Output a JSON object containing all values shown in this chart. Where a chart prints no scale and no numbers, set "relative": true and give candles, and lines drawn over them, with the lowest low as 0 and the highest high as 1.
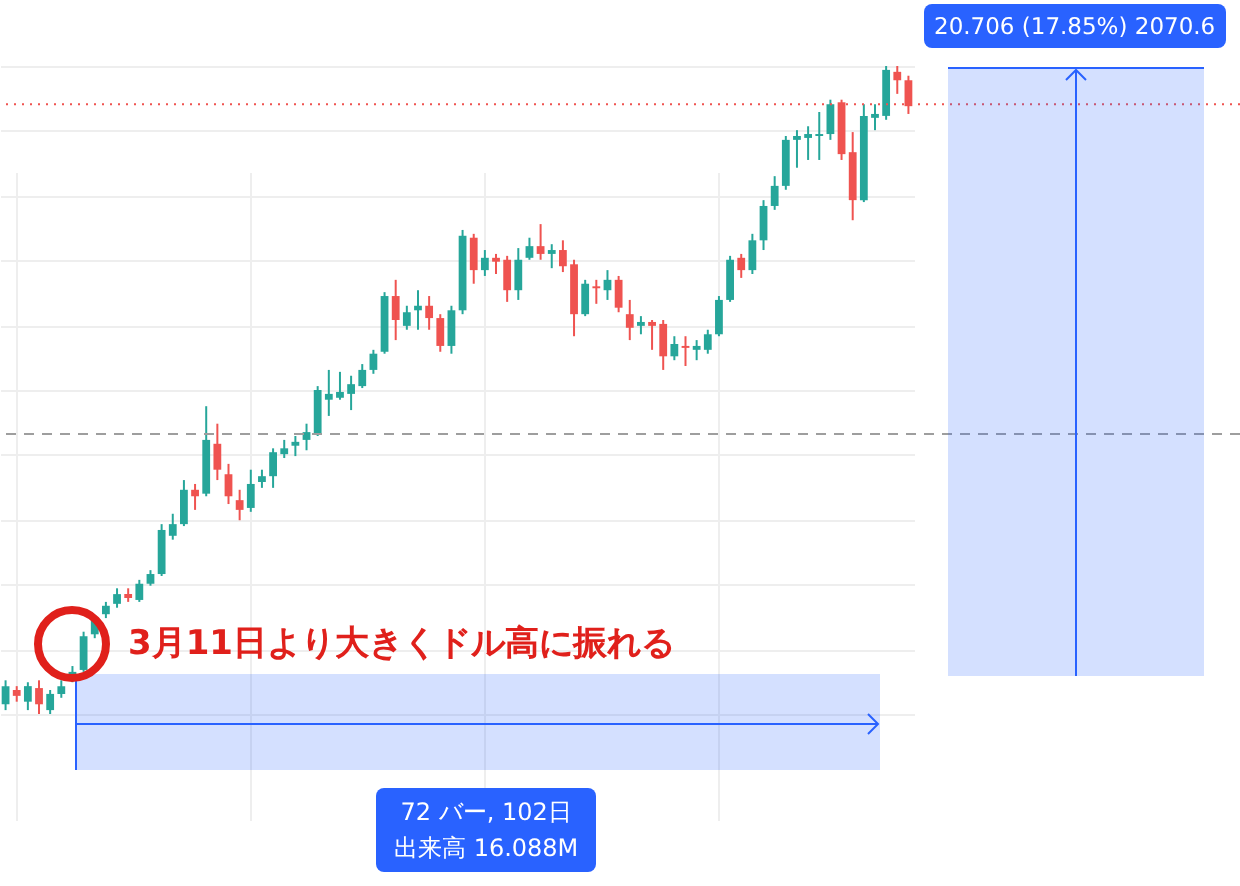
{
  "chart_data": {
    "type": "candlestick",
    "relative": true,
    "grid": true,
    "categories": [
      null,
      null,
      null,
      null,
      null,
      null,
      null,
      null,
      null,
      null,
      null,
      null,
      null,
      null,
      null,
      null,
      null,
      null,
      null,
      null,
      null,
      null,
      null,
      null,
      null,
      null,
      null,
      null,
      null,
      null,
      null,
      null,
      null,
      null,
      null,
      null,
      null,
      null,
      null,
      null,
      null,
      null,
      null,
      null,
      null,
      null,
      null,
      null,
      null,
      null,
      null,
      null,
      null,
      null,
      null,
      null,
      null,
      null,
      null,
      null,
      null,
      null,
      null,
      null,
      null,
      null,
      null,
      null,
      null,
      null,
      null,
      null,
      null,
      null,
      null,
      null,
      null,
      null,
      null,
      null,
      null,
      null
    ],
    "ohlc": [
      [
        0.015,
        0.052,
        0.006,
        0.043
      ],
      [
        0.037,
        0.043,
        0.019,
        0.028
      ],
      [
        0.019,
        0.049,
        0.006,
        0.043
      ],
      [
        0.04,
        0.052,
        0,
        0.015
      ],
      [
        0.006,
        0.037,
        0,
        0.031
      ],
      [
        0.031,
        0.052,
        0.025,
        0.043
      ],
      [
        0.052,
        0.074,
        0.049,
        0.065
      ],
      [
        0.068,
        0.127,
        0.065,
        0.12
      ],
      [
        0.123,
        0.151,
        0.117,
        0.145
      ],
      [
        0.154,
        0.173,
        0.148,
        0.167
      ],
      [
        0.17,
        0.194,
        0.164,
        0.185
      ],
      [
        0.185,
        0.194,
        0.173,
        0.179
      ],
      [
        0.176,
        0.207,
        0.173,
        0.201
      ],
      [
        0.201,
        0.222,
        0.198,
        0.216
      ],
      [
        0.216,
        0.293,
        0.213,
        0.284
      ],
      [
        0.275,
        0.309,
        0.269,
        0.293
      ],
      [
        0.293,
        0.361,
        0.29,
        0.346
      ],
      [
        0.346,
        0.355,
        0.315,
        0.336
      ],
      [
        0.34,
        0.475,
        0.336,
        0.423
      ],
      [
        0.417,
        0.448,
        0.361,
        0.377
      ],
      [
        0.37,
        0.386,
        0.324,
        0.336
      ],
      [
        0.33,
        0.346,
        0.299,
        0.315
      ],
      [
        0.318,
        0.377,
        0.312,
        0.355
      ],
      [
        0.358,
        0.377,
        0.349,
        0.367
      ],
      [
        0.367,
        0.41,
        0.349,
        0.404
      ],
      [
        0.401,
        0.423,
        0.395,
        0.41
      ],
      [
        0.414,
        0.429,
        0.398,
        0.42
      ],
      [
        0.423,
        0.448,
        0.407,
        0.435
      ],
      [
        0.432,
        0.506,
        0.429,
        0.5
      ],
      [
        0.485,
        0.531,
        0.46,
        0.494
      ],
      [
        0.488,
        0.528,
        0.485,
        0.497
      ],
      [
        0.494,
        0.522,
        0.469,
        0.509
      ],
      [
        0.506,
        0.54,
        0.503,
        0.531
      ],
      [
        0.531,
        0.562,
        0.525,
        0.556
      ],
      [
        0.559,
        0.651,
        0.556,
        0.645
      ],
      [
        0.645,
        0.67,
        0.577,
        0.608
      ],
      [
        0.599,
        0.63,
        0.593,
        0.62
      ],
      [
        0.623,
        0.654,
        0.593,
        0.63
      ],
      [
        0.63,
        0.645,
        0.593,
        0.611
      ],
      [
        0.611,
        0.617,
        0.559,
        0.568
      ],
      [
        0.568,
        0.63,
        0.556,
        0.623
      ],
      [
        0.623,
        0.747,
        0.617,
        0.738
      ],
      [
        0.735,
        0.741,
        0.664,
        0.685
      ],
      [
        0.685,
        0.716,
        0.676,
        0.704
      ],
      [
        0.704,
        0.71,
        0.679,
        0.698
      ],
      [
        0.701,
        0.707,
        0.636,
        0.654
      ],
      [
        0.654,
        0.719,
        0.639,
        0.701
      ],
      [
        0.704,
        0.735,
        0.701,
        0.722
      ],
      [
        0.722,
        0.756,
        0.701,
        0.71
      ],
      [
        0.71,
        0.725,
        0.688,
        0.716
      ],
      [
        0.716,
        0.731,
        0.682,
        0.691
      ],
      [
        0.694,
        0.701,
        0.583,
        0.617
      ],
      [
        0.617,
        0.67,
        0.614,
        0.664
      ],
      [
        0.66,
        0.67,
        0.633,
        0.657
      ],
      [
        0.654,
        0.685,
        0.639,
        0.67
      ],
      [
        0.67,
        0.676,
        0.62,
        0.627
      ],
      [
        0.617,
        0.639,
        0.577,
        0.596
      ],
      [
        0.599,
        0.614,
        0.586,
        0.605
      ],
      [
        0.605,
        0.608,
        0.562,
        0.599
      ],
      [
        0.602,
        0.608,
        0.531,
        0.552
      ],
      [
        0.552,
        0.583,
        0.546,
        0.571
      ],
      [
        0.568,
        0.583,
        0.537,
        0.565
      ],
      [
        0.562,
        0.577,
        0.546,
        0.568
      ],
      [
        0.562,
        0.593,
        0.556,
        0.586
      ],
      [
        0.586,
        0.645,
        0.583,
        0.639
      ],
      [
        0.639,
        0.707,
        0.636,
        0.701
      ],
      [
        0.704,
        0.71,
        0.673,
        0.685
      ],
      [
        0.685,
        0.741,
        0.679,
        0.731
      ],
      [
        0.731,
        0.793,
        0.716,
        0.784
      ],
      [
        0.784,
        0.83,
        0.778,
        0.815
      ],
      [
        0.815,
        0.892,
        0.809,
        0.886
      ],
      [
        0.886,
        0.901,
        0.843,
        0.892
      ],
      [
        0.889,
        0.907,
        0.855,
        0.895
      ],
      [
        0.892,
        0.929,
        0.855,
        0.895
      ],
      [
        0.895,
        0.948,
        0.886,
        0.941
      ],
      [
        0.944,
        0.948,
        0.855,
        0.864
      ],
      [
        0.867,
        0.898,
        0.762,
        0.793
      ],
      [
        0.793,
        0.941,
        0.79,
        0.923
      ],
      [
        0.92,
        0.941,
        0.901,
        0.926
      ],
      [
        0.923,
        1,
        0.917,
        0.994
      ],
      [
        0.991,
        1,
        0.957,
        0.978
      ],
      [
        0.978,
        0.985,
        0.926,
        0.938
      ]
    ],
    "colors": [
      "#26a69a",
      "#ef5350",
      "#26a69a",
      "#ef5350",
      "#26a69a",
      "#26a69a",
      "#26a69a",
      "#26a69a",
      "#26a69a",
      "#26a69a",
      "#26a69a",
      "#ef5350",
      "#26a69a",
      "#26a69a",
      "#26a69a",
      "#26a69a",
      "#26a69a",
      "#ef5350",
      "#26a69a",
      "#ef5350",
      "#ef5350",
      "#ef5350",
      "#26a69a",
      "#26a69a",
      "#26a69a",
      "#26a69a",
      "#26a69a",
      "#26a69a",
      "#26a69a",
      "#26a69a",
      "#26a69a",
      "#26a69a",
      "#26a69a",
      "#26a69a",
      "#26a69a",
      "#ef5350",
      "#26a69a",
      "#26a69a",
      "#ef5350",
      "#ef5350",
      "#26a69a",
      "#26a69a",
      "#ef5350",
      "#26a69a",
      "#ef5350",
      "#ef5350",
      "#26a69a",
      "#26a69a",
      "#ef5350",
      "#26a69a",
      "#ef5350",
      "#ef5350",
      "#26a69a",
      "#ef5350",
      "#26a69a",
      "#ef5350",
      "#ef5350",
      "#26a69a",
      "#ef5350",
      "#ef5350",
      "#26a69a",
      "#ef5350",
      "#26a69a",
      "#26a69a",
      "#26a69a",
      "#26a69a",
      "#ef5350",
      "#26a69a",
      "#26a69a",
      "#26a69a",
      "#26a69a",
      "#26a69a",
      "#26a69a",
      "#26a69a",
      "#26a69a",
      "#ef5350",
      "#ef5350",
      "#26a69a",
      "#26a69a",
      "#26a69a",
      "#ef5350",
      "#ef5350"
    ],
    "ref_lines": [
      {
        "axis": "y",
        "value": 0.941,
        "color": "#ef5350",
        "line_style": "dotted"
      },
      {
        "axis": "y",
        "value": 0.432,
        "color": "#9e9e9e",
        "line_style": "dashed"
      }
    ],
    "annotations": [
      "3月11日より大きくドル高に振れる",
      "20.706 (17.85%) 2070.6",
      "72 バー, 102日",
      "出来高 16.088M"
    ]
  }
}
